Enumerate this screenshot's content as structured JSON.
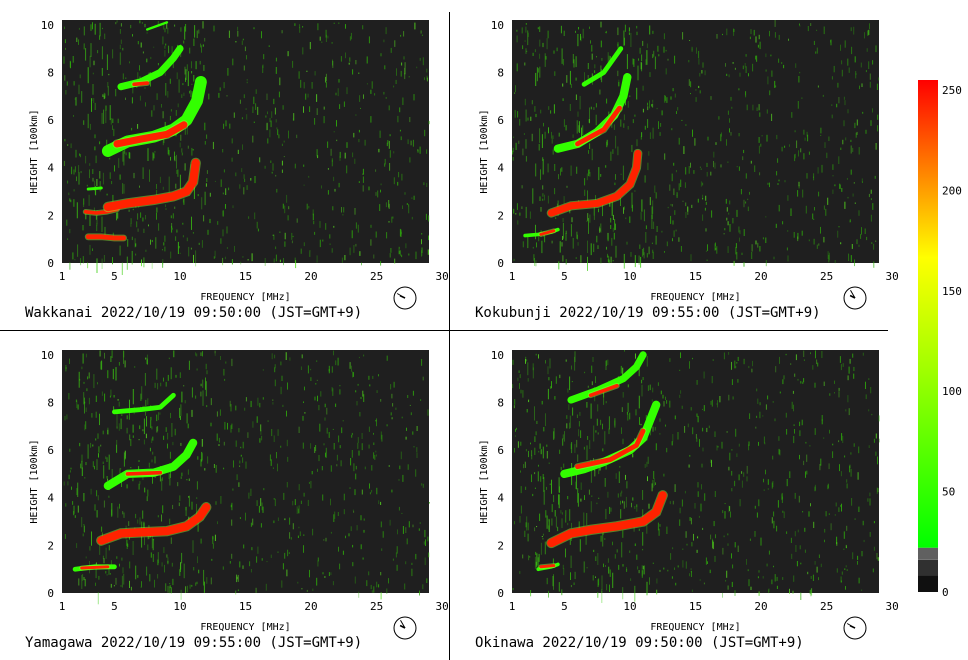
{
  "chart_data": [
    {
      "type": "heatmap",
      "station": "Wakkanai",
      "caption": "Wakkanai 2022/10/19 09:50:00 (JST=GMT+9)",
      "xlabel": "FREQUENCY [MHz]",
      "ylabel": "HEIGHT [100km]",
      "xlim": [
        0,
        30
      ],
      "ylim": [
        0,
        10.2
      ],
      "xticks": [
        1,
        5,
        10,
        15,
        20,
        25,
        30
      ],
      "yticks": [
        0,
        2,
        4,
        6,
        8,
        10
      ],
      "clock": {
        "hour": 9,
        "minute": 50
      },
      "traces": [
        {
          "type": "red",
          "points": [
            [
              2.0,
              1.1
            ],
            [
              3.0,
              1.1
            ],
            [
              4.0,
              1.05
            ],
            [
              4.7,
              1.05
            ]
          ],
          "width": 0.2
        },
        {
          "type": "red",
          "points": [
            [
              1.8,
              2.15
            ],
            [
              2.6,
              2.1
            ],
            [
              3.4,
              2.15
            ],
            [
              4.2,
              2.25
            ]
          ],
          "width": 0.15
        },
        {
          "type": "red",
          "points": [
            [
              3.5,
              2.35
            ],
            [
              5.0,
              2.5
            ],
            [
              7.0,
              2.65
            ],
            [
              8.5,
              2.8
            ],
            [
              9.5,
              3.0
            ],
            [
              10.0,
              3.4
            ],
            [
              10.2,
              4.2
            ]
          ],
          "width": 0.35
        },
        {
          "type": "green",
          "points": [
            [
              2.0,
              3.1
            ],
            [
              3.0,
              3.15
            ]
          ],
          "width": 0.12
        },
        {
          "type": "green",
          "points": [
            [
              3.5,
              4.7
            ],
            [
              5.0,
              5.1
            ],
            [
              7.0,
              5.3
            ],
            [
              8.5,
              5.6
            ],
            [
              9.5,
              6.0
            ],
            [
              10.3,
              6.8
            ],
            [
              10.6,
              7.6
            ]
          ],
          "width": 0.5
        },
        {
          "type": "red",
          "points": [
            [
              4.2,
              5.0
            ],
            [
              6.0,
              5.2
            ],
            [
              8.0,
              5.4
            ],
            [
              9.3,
              5.8
            ]
          ],
          "width": 0.3
        },
        {
          "type": "green",
          "points": [
            [
              4.5,
              7.4
            ],
            [
              6.0,
              7.6
            ],
            [
              7.5,
              8.0
            ],
            [
              8.5,
              8.6
            ],
            [
              9.0,
              9.0
            ]
          ],
          "width": 0.3
        },
        {
          "type": "red",
          "points": [
            [
              5.5,
              7.5
            ],
            [
              6.5,
              7.55
            ]
          ],
          "width": 0.15
        },
        {
          "type": "green",
          "points": [
            [
              6.5,
              9.8
            ],
            [
              8.0,
              10.1
            ]
          ],
          "width": 0.1
        }
      ]
    },
    {
      "type": "heatmap",
      "station": "Kokubunji",
      "caption": "Kokubunji 2022/10/19 09:55:00 (JST=GMT+9)",
      "xlabel": "FREQUENCY [MHz]",
      "ylabel": "HEIGHT [100km]",
      "xlim": [
        0,
        30
      ],
      "ylim": [
        0,
        10.2
      ],
      "xticks": [
        1,
        5,
        10,
        15,
        20,
        25,
        30
      ],
      "yticks": [
        0,
        2,
        4,
        6,
        8,
        10
      ],
      "clock": {
        "hour": 9,
        "minute": 55
      },
      "traces": [
        {
          "type": "green",
          "points": [
            [
              1.0,
              1.15
            ],
            [
              2.0,
              1.2
            ],
            [
              3.0,
              1.3
            ],
            [
              3.5,
              1.4
            ]
          ],
          "width": 0.15
        },
        {
          "type": "red",
          "points": [
            [
              2.2,
              1.2
            ],
            [
              3.2,
              1.35
            ]
          ],
          "width": 0.12
        },
        {
          "type": "red",
          "points": [
            [
              3.0,
              2.1
            ],
            [
              4.5,
              2.4
            ],
            [
              6.5,
              2.5
            ],
            [
              8.0,
              2.8
            ],
            [
              9.0,
              3.3
            ],
            [
              9.5,
              4.0
            ],
            [
              9.6,
              4.6
            ]
          ],
          "width": 0.3
        },
        {
          "type": "green",
          "points": [
            [
              3.5,
              4.8
            ],
            [
              5.0,
              5.0
            ],
            [
              6.5,
              5.5
            ],
            [
              7.8,
              6.2
            ],
            [
              8.5,
              7.0
            ],
            [
              8.8,
              7.8
            ]
          ],
          "width": 0.35
        },
        {
          "type": "red",
          "points": [
            [
              5.0,
              5.0
            ],
            [
              7.0,
              5.6
            ],
            [
              8.2,
              6.5
            ]
          ],
          "width": 0.2
        },
        {
          "type": "green",
          "points": [
            [
              5.5,
              7.5
            ],
            [
              7.0,
              8.0
            ],
            [
              8.3,
              9.0
            ]
          ],
          "width": 0.2
        }
      ]
    },
    {
      "type": "heatmap",
      "station": "Yamagawa",
      "caption": "Yamagawa 2022/10/19 09:55:00 (JST=GMT+9)",
      "xlabel": "FREQUENCY [MHz]",
      "ylabel": "HEIGHT [100km]",
      "xlim": [
        0,
        30
      ],
      "ylim": [
        0,
        10.2
      ],
      "xticks": [
        1,
        5,
        10,
        15,
        20,
        25,
        30
      ],
      "yticks": [
        0,
        2,
        4,
        6,
        8,
        10
      ],
      "clock": {
        "hour": 9,
        "minute": 55
      },
      "traces": [
        {
          "type": "green",
          "points": [
            [
              1.0,
              1.0
            ],
            [
              2.5,
              1.1
            ],
            [
              4.0,
              1.1
            ]
          ],
          "width": 0.2
        },
        {
          "type": "red",
          "points": [
            [
              1.5,
              1.05
            ],
            [
              3.5,
              1.1
            ]
          ],
          "width": 0.12
        },
        {
          "type": "red",
          "points": [
            [
              3.0,
              2.2
            ],
            [
              4.5,
              2.5
            ],
            [
              6.0,
              2.55
            ],
            [
              8.0,
              2.6
            ],
            [
              9.5,
              2.8
            ],
            [
              10.5,
              3.2
            ],
            [
              11.0,
              3.6
            ]
          ],
          "width": 0.35
        },
        {
          "type": "green",
          "points": [
            [
              3.5,
              4.5
            ],
            [
              5.0,
              5.0
            ],
            [
              7.0,
              5.05
            ],
            [
              8.5,
              5.3
            ],
            [
              9.5,
              5.8
            ],
            [
              10.0,
              6.3
            ]
          ],
          "width": 0.35
        },
        {
          "type": "red",
          "points": [
            [
              5.0,
              5.0
            ],
            [
              7.5,
              5.05
            ]
          ],
          "width": 0.15
        },
        {
          "type": "green",
          "points": [
            [
              4.0,
              7.6
            ],
            [
              6.0,
              7.7
            ],
            [
              7.5,
              7.8
            ],
            [
              8.5,
              8.3
            ]
          ],
          "width": 0.2
        }
      ]
    },
    {
      "type": "heatmap",
      "station": "Okinawa",
      "caption": "Okinawa 2022/10/19 09:50:00 (JST=GMT+9)",
      "xlabel": "FREQUENCY [MHz]",
      "ylabel": "HEIGHT [100km]",
      "xlim": [
        0,
        30
      ],
      "ylim": [
        0,
        10.2
      ],
      "xticks": [
        1,
        5,
        10,
        15,
        20,
        25,
        30
      ],
      "yticks": [
        0,
        2,
        4,
        6,
        8,
        10
      ],
      "clock": {
        "hour": 9,
        "minute": 50
      },
      "traces": [
        {
          "type": "green",
          "points": [
            [
              2.0,
              1.0
            ],
            [
              3.0,
              1.1
            ],
            [
              3.5,
              1.2
            ]
          ],
          "width": 0.15
        },
        {
          "type": "red",
          "points": [
            [
              2.2,
              1.1
            ],
            [
              3.2,
              1.15
            ]
          ],
          "width": 0.12
        },
        {
          "type": "red",
          "points": [
            [
              3.0,
              2.1
            ],
            [
              4.5,
              2.5
            ],
            [
              6.0,
              2.65
            ],
            [
              8.0,
              2.8
            ],
            [
              10.0,
              3.0
            ],
            [
              11.0,
              3.4
            ],
            [
              11.5,
              4.1
            ]
          ],
          "width": 0.35
        },
        {
          "type": "green",
          "points": [
            [
              4.0,
              5.0
            ],
            [
              5.5,
              5.2
            ],
            [
              7.0,
              5.5
            ],
            [
              9.0,
              6.0
            ],
            [
              10.0,
              6.5
            ],
            [
              10.5,
              7.2
            ],
            [
              11.0,
              7.9
            ]
          ],
          "width": 0.35
        },
        {
          "type": "red",
          "points": [
            [
              5.0,
              5.3
            ],
            [
              7.5,
              5.6
            ],
            [
              9.5,
              6.2
            ],
            [
              10.0,
              6.8
            ]
          ],
          "width": 0.2
        },
        {
          "type": "green",
          "points": [
            [
              4.5,
              8.1
            ],
            [
              6.5,
              8.5
            ],
            [
              8.5,
              9.0
            ],
            [
              9.5,
              9.5
            ],
            [
              10.0,
              10.0
            ]
          ],
          "width": 0.3
        },
        {
          "type": "red",
          "points": [
            [
              6.0,
              8.3
            ],
            [
              8.0,
              8.7
            ]
          ],
          "width": 0.15
        }
      ]
    }
  ],
  "colorbar": {
    "min": 0,
    "max": 255,
    "ticks": [
      "250",
      "200",
      "150",
      "100",
      "50",
      "0"
    ],
    "tick_values": [
      250,
      200,
      150,
      100,
      50,
      0
    ],
    "colors": {
      "low": "#00ff00",
      "mid": "#ffff00",
      "high": "#ff0000"
    }
  },
  "colors": {
    "background": "#1f1f1f",
    "trace_red": "#ff2200",
    "trace_green": "#33ff00",
    "axis_text": "#000000"
  }
}
